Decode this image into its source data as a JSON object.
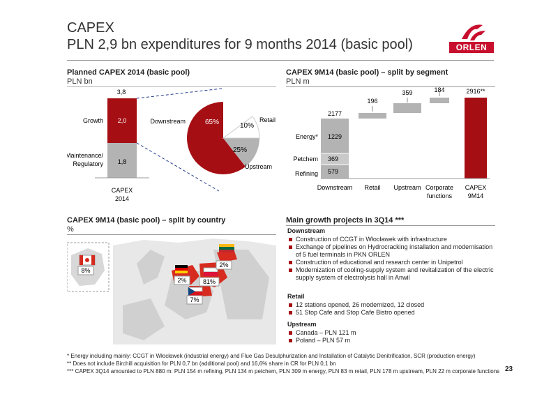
{
  "header": {
    "title_line1": "CAPEX",
    "title_line2": "PLN 2,9 bn expenditures for 9 months 2014 (basic pool)",
    "logo_text": "ORLEN"
  },
  "planned": {
    "title": "Planned CAPEX 2014 (basic pool)",
    "unit": "PLN bn",
    "total_label": "3,8",
    "growth_label": "Growth",
    "growth_value": "2,0",
    "maint_label_1": "Maintenance/",
    "maint_label_2": "Regulatory",
    "maint_value": "1,8",
    "x_label_1": "CAPEX",
    "x_label_2": "2014",
    "pie_downstream_label": "Downstream",
    "pie_retail_label": "Retail",
    "pie_upstream_label": "Upstream",
    "pie_downstream_pct": "65%",
    "pie_retail_pct": "10%",
    "pie_upstream_pct": "25%"
  },
  "segment": {
    "title": "CAPEX 9M14 (basic pool) – split by segment",
    "unit": "PLN m",
    "energy_label": "Energy*",
    "petchem_label": "Petchem",
    "refining_label": "Refining",
    "energy_value": "1229",
    "petchem_value": "369",
    "refining_value": "579",
    "downstream_total": "2177",
    "retail_value": "196",
    "upstream_value": "359",
    "corporate_value": "184",
    "capex_total": "2916**",
    "x_downstream": "Downstream",
    "x_retail": "Retail",
    "x_upstream": "Upstream",
    "x_corporate_1": "Corporate",
    "x_corporate_2": "functions",
    "x_capex_1": "CAPEX",
    "x_capex_2": "9M14"
  },
  "country": {
    "title": "CAPEX 9M14 (basic pool) – split by country",
    "unit": "%",
    "canada_pct": "8%",
    "germany_pct": "2%",
    "poland_pct": "81%",
    "lithuania_pct": "2%",
    "czech_pct": "7%"
  },
  "growth": {
    "title": "Main growth projects in 3Q14 ***",
    "downstream_head": "Downstream",
    "downstream_items": [
      "Construction of CCGT in Włocławek with infrastructure",
      "Exchange of pipelines on Hydrocracking installation and modernisation of 5 fuel terminals in PKN ORLEN",
      "Construction of educational and research center in Unipetrol",
      "Modernization of cooling-supply system and revitalization of the electric supply system of electrolysis hall in Anwil"
    ],
    "retail_head": "Retail",
    "retail_items": [
      "12 stations opened, 26 modernized, 12 closed",
      "51 Stop Cafe and Stop Cafe Bistro opened"
    ],
    "upstream_head": "Upstream",
    "upstream_items": [
      "Canada – PLN 121 m",
      "Poland – PLN 57 m"
    ]
  },
  "footnotes": {
    "f1": "*    Energy including mainly: CCGT in Włocławek (industrial energy) and Flue Gas Desulphurization and Installation of Catalytic Denitrification, SCR (production energy)",
    "f2": "**  Does not include Birchill acquisition for PLN 0,7 bn (additional pool) and 16,6% share in CR for PLN 0,1 bn",
    "f3": "*** CAPEX 3Q14 amounted to PLN 880 m: PLN 154 m refining, PLN 134 m petchem, PLN 309 m energy, PLN 83 m retail, PLN 178 m upstream, PLN 22 m corporate functions",
    "page": "23"
  },
  "colors": {
    "accent": "#a50f14",
    "grey": "#b3b3b3",
    "red_logo": "#c8102e"
  }
}
